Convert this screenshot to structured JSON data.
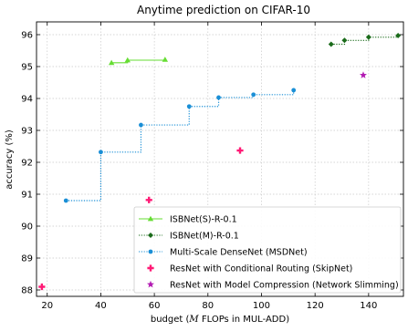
{
  "chart_data": {
    "type": "line",
    "title": "Anytime prediction on CIFAR-10",
    "xlabel": "budget (M FLOPs in MUL-ADD)",
    "xlabel_parts": {
      "prefix": "budget (",
      "math": "M",
      "suffix": " FLOPs in MUL-ADD)"
    },
    "ylabel": "accuracy (%)",
    "xlim": [
      16,
      153
    ],
    "ylim": [
      87.8,
      96.4
    ],
    "x_ticks": [
      20,
      40,
      60,
      80,
      100,
      120,
      140
    ],
    "y_ticks": [
      88,
      89,
      90,
      91,
      92,
      93,
      94,
      95,
      96
    ],
    "grid": true,
    "legend_position": "lower-right",
    "series": [
      {
        "name": "ISBNet(S)-R-0.1",
        "color": "#66dd33",
        "style": "solid-step",
        "marker": "triangle",
        "points": [
          [
            44,
            95.12
          ],
          [
            50,
            95.2
          ],
          [
            64,
            95.22
          ]
        ]
      },
      {
        "name": "ISBNet(M)-R-0.1",
        "color": "#1a6b1a",
        "style": "dotted-step",
        "marker": "diamond",
        "points": [
          [
            126,
            95.7
          ],
          [
            131,
            95.82
          ],
          [
            140,
            95.92
          ],
          [
            151,
            95.97
          ]
        ]
      },
      {
        "name": "Multi-Scale DenseNet (MSDNet)",
        "color": "#1a8fd6",
        "style": "dotted-step",
        "marker": "circle",
        "points": [
          [
            27,
            90.8
          ],
          [
            40,
            92.32
          ],
          [
            55,
            93.17
          ],
          [
            73,
            93.75
          ],
          [
            84,
            94.03
          ],
          [
            97,
            94.12
          ],
          [
            112,
            94.26
          ]
        ]
      },
      {
        "name": "ResNet with Conditional Routing (SkipNet)",
        "color": "#ff1a75",
        "style": "none",
        "marker": "plus",
        "points": [
          [
            18,
            88.1
          ],
          [
            58,
            90.82
          ],
          [
            92,
            92.37
          ]
        ]
      },
      {
        "name": "ResNet with Model Compression (Network Slimming)",
        "color": "#b21ab2",
        "style": "none",
        "marker": "star",
        "points": [
          [
            138,
            94.73
          ]
        ]
      }
    ]
  }
}
